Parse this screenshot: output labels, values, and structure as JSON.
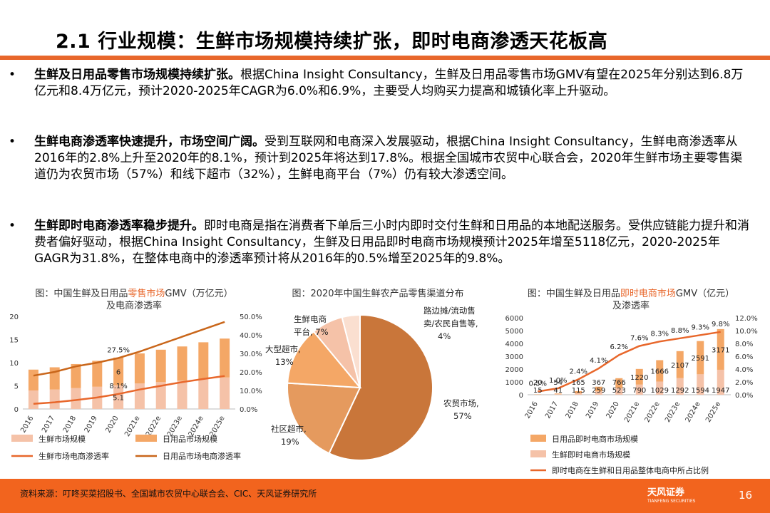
{
  "slide": {
    "title": "2.1 行业规模：生鲜市场规模持续扩张，即时电商渗透天花板高",
    "page_number": "16"
  },
  "bullets": [
    {
      "marker": "•",
      "bold": "生鲜及日用品零售市场规模持续扩张。",
      "text": "根据China Insight Consultancy，生鲜及日用品零售市场GMV有望在2025年分别达到6.8万亿元和8.4万亿元，预计2020-2025年CAGR为6.0%和6.9%，主要受人均购买力提高和城镇化率上升驱动。"
    },
    {
      "marker": "•",
      "bold": "生鲜电商渗透率快速提升，市场空间广阔。",
      "text": "受到互联网和电商深入发展驱动，根据China Insight Consultancy，生鲜电商渗透率从2016年的2.8%上升至2020年的8.1%，预计到2025年将达到17.8%。根据全国城市农贸中心联合会，2020年生鲜市场主要零售渠道仍为农贸市场（57%）和线下超市（32%），生鲜电商平台（7%）仍有较大渗透空间。"
    },
    {
      "marker": "•",
      "bold": "生鲜即时电商渗透率稳步提升。",
      "text": "即时电商是指在消费者下单后三小时内即时交付生鲜和日用品的本地配送服务。受供应链能力提升和消费者偏好驱动，根据China Insight Consultancy，生鲜及日用品即时电商市场规模预计2025年增至5118亿元，2020-2025年GAGR为31.8%，在整体电商中的渗透率预计将从2016年的0.5%增至2025年的9.8%。"
    }
  ],
  "captions": {
    "chart1": {
      "pre": "图：中国生鲜及日用品",
      "hl": "零售市场",
      "post": "GMV（万亿元）",
      "line2": "及电商渗透率"
    },
    "chart2": {
      "text": "图：2020年中国生鲜农产品零售渠道分布"
    },
    "chart3": {
      "pre": "图：中国生鲜及日用品",
      "hl": "即时电商市场",
      "post": "GMV（亿元）",
      "line2": "及渗透率"
    }
  },
  "colors": {
    "accent": "#E8672B",
    "light": "#F5C2A8",
    "mid": "#F4A766",
    "dark": "#C9763A",
    "footer": "#F2641E"
  },
  "chart_data": [
    {
      "type": "bar",
      "stacked": true,
      "categories": [
        "2016",
        "2017",
        "2018",
        "2019",
        "2020",
        "2021e",
        "2022e",
        "2023e",
        "2024e",
        "2025e"
      ],
      "series": [
        {
          "name": "生鲜市场规模",
          "axis": "left",
          "values": [
            4.0,
            4.2,
            4.5,
            4.8,
            5.1,
            5.5,
            5.8,
            6.1,
            6.5,
            6.8
          ],
          "color": "#F5C2A8"
        },
        {
          "name": "日用品市场规模",
          "axis": "left",
          "values": [
            4.5,
            4.8,
            5.2,
            5.6,
            6.0,
            6.5,
            7.0,
            7.4,
            7.9,
            8.4
          ],
          "color": "#F4A766"
        },
        {
          "name": "生鲜市场电商渗透率",
          "type": "line",
          "axis": "right",
          "values": [
            2.8,
            3.6,
            4.8,
            6.2,
            8.1,
            10.5,
            12.5,
            14.5,
            16.2,
            17.8
          ],
          "color": "#E8672B"
        },
        {
          "name": "日用品市场电商渗透率",
          "type": "line",
          "axis": "right",
          "values": [
            18,
            20,
            23,
            25,
            27.5,
            31,
            35,
            39,
            43,
            47
          ],
          "color": "#C9661A"
        }
      ],
      "data_labels": [
        {
          "text": "27.5%",
          "series": 3,
          "index": 4
        },
        {
          "text": "6",
          "series": 1,
          "index": 4
        },
        {
          "text": "8.1%",
          "series": 2,
          "index": 4
        },
        {
          "text": "5.1",
          "series": 0,
          "index": 4
        }
      ],
      "ylim": [
        0,
        20
      ],
      "yticks": [
        "0",
        "5",
        "10",
        "15",
        "20"
      ],
      "ylim_right": [
        0,
        50
      ],
      "yticks_right": [
        "0.0%",
        "10.0%",
        "20.0%",
        "30.0%",
        "40.0%",
        "50.0%"
      ],
      "legend": "bottom"
    },
    {
      "type": "pie",
      "slices": [
        {
          "label": "农贸市场,",
          "value_label": "57%",
          "value": 57,
          "color": "#C9763A"
        },
        {
          "label": "社区超市,",
          "value_label": "19%",
          "value": 19,
          "color": "#E59A5E"
        },
        {
          "label": "大型超市,",
          "value_label": "13%",
          "value": 13,
          "color": "#F4A766"
        },
        {
          "label": "生鲜电商平台, 7%",
          "value_label": "",
          "value": 7,
          "color": "#F5C2A8"
        },
        {
          "label": "路边摊/流动售卖/农民自售等,",
          "value_label": "4%",
          "value": 4,
          "color": "#FADFD0"
        }
      ]
    },
    {
      "type": "bar",
      "stacked": true,
      "categories": [
        "2016",
        "2017",
        "2018",
        "2019",
        "2020",
        "2021e",
        "2022e",
        "2023e",
        "2024e",
        "2025e"
      ],
      "series": [
        {
          "name": "生鲜即时电商市场规模",
          "axis": "left",
          "values": [
            15,
            41,
            115,
            259,
            523,
            790,
            1029,
            1292,
            1594,
            1947
          ],
          "color": "#F5C2A8"
        },
        {
          "name": "日用品即时电商市场规模",
          "axis": "left",
          "values": [
            20,
            54,
            165,
            367,
            766,
            1220,
            1666,
            2107,
            2591,
            3171
          ],
          "color": "#F4A766"
        },
        {
          "name": "即时电商在生鲜和日用品整体电商中所占比例",
          "type": "line",
          "axis": "right",
          "values": [
            0.5,
            1.0,
            2.4,
            4.1,
            6.2,
            7.6,
            8.3,
            8.8,
            9.3,
            9.8
          ],
          "color": "#E8672B"
        }
      ],
      "ylim": [
        0,
        6000
      ],
      "yticks": [
        "0",
        "1000",
        "2000",
        "3000",
        "4000",
        "5000",
        "6000"
      ],
      "ylim_right": [
        0,
        12
      ],
      "yticks_right": [
        "0.0%",
        "2.0%",
        "4.0%",
        "6.0%",
        "8.0%",
        "10.0%",
        "12.0%"
      ],
      "rate_labels": [
        "0.5%",
        "1.0%",
        "2.4%",
        "4.1%",
        "6.2%",
        "7.6%",
        "8.3%",
        "8.8%",
        "9.3%",
        "9.8%"
      ],
      "legend": "bottom"
    }
  ],
  "footer": {
    "source": "资料来源：叮咚买菜招股书、全国城市农贸中心联合会、CIC、天风证券研究所",
    "logo_text": "天风证券",
    "logo_sub": "TIANFENG SECURITIES"
  }
}
